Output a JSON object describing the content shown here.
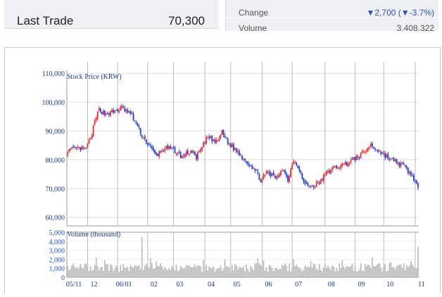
{
  "quote": {
    "last_trade_label": "Last Trade",
    "last_trade_value": "70,300",
    "change_label": "Change",
    "change_value": "▼2,700 (▼-3.7%)",
    "volume_label": "Volume",
    "volume_value": "3,408,322"
  },
  "colors": {
    "up": "#e8282d",
    "down": "#1f3fd6",
    "volume_bar": "#b8b8b8",
    "axis_text": "#1a3a8a",
    "grid": "#dddddd"
  },
  "chart_data": [
    {
      "type": "candlestick",
      "title": "Stock Price (KRW)",
      "ylim": [
        57000,
        111000
      ],
      "y_ticks": [
        "60,000",
        "70,000",
        "80,000",
        "90,000",
        "100,000",
        "110,000"
      ],
      "y_tick_values": [
        60000,
        70000,
        80000,
        90000,
        100000,
        110000
      ],
      "x_tick_labels": [
        "05/11",
        "12",
        "06/01",
        "02",
        "03",
        "04",
        "05",
        "06",
        "07",
        "08",
        "09",
        "10",
        "11"
      ],
      "month_start_index": [
        0,
        14,
        35,
        56,
        74,
        96,
        114,
        136,
        157,
        180,
        201,
        221,
        243
      ],
      "close_keypoints": [
        [
          0,
          83000
        ],
        [
          6,
          84000
        ],
        [
          12,
          83500
        ],
        [
          16,
          87000
        ],
        [
          19,
          93000
        ],
        [
          22,
          97500
        ],
        [
          26,
          96000
        ],
        [
          32,
          96500
        ],
        [
          38,
          98000
        ],
        [
          44,
          96000
        ],
        [
          52,
          88500
        ],
        [
          58,
          84000
        ],
        [
          62,
          81500
        ],
        [
          68,
          84000
        ],
        [
          74,
          83500
        ],
        [
          80,
          81000
        ],
        [
          86,
          83000
        ],
        [
          90,
          81000
        ],
        [
          94,
          84000
        ],
        [
          98,
          88000
        ],
        [
          104,
          86000
        ],
        [
          108,
          89500
        ],
        [
          112,
          86000
        ],
        [
          118,
          83000
        ],
        [
          124,
          80000
        ],
        [
          130,
          77000
        ],
        [
          135,
          73000
        ],
        [
          140,
          75500
        ],
        [
          146,
          73500
        ],
        [
          150,
          77000
        ],
        [
          154,
          73000
        ],
        [
          158,
          80000
        ],
        [
          162,
          77000
        ],
        [
          165,
          72000
        ],
        [
          170,
          70500
        ],
        [
          176,
          72000
        ],
        [
          182,
          76000
        ],
        [
          188,
          77500
        ],
        [
          194,
          78500
        ],
        [
          200,
          80000
        ],
        [
          206,
          82000
        ],
        [
          212,
          85000
        ],
        [
          216,
          83500
        ],
        [
          222,
          81500
        ],
        [
          228,
          79500
        ],
        [
          234,
          78000
        ],
        [
          238,
          76000
        ],
        [
          242,
          73500
        ],
        [
          245,
          70300
        ]
      ]
    },
    {
      "type": "bar",
      "title": "Volume (thousand)",
      "ylim": [
        0,
        5000
      ],
      "y_ticks": [
        "0",
        "1,000",
        "2,000",
        "3,000",
        "4,000",
        "5,000"
      ],
      "y_tick_values": [
        0,
        1000,
        2000,
        3000,
        4000,
        5000
      ],
      "baseline": 1100,
      "spikes": [
        [
          20,
          2200
        ],
        [
          26,
          1900
        ],
        [
          52,
          4500
        ],
        [
          58,
          2100
        ],
        [
          62,
          1800
        ],
        [
          95,
          1900
        ],
        [
          110,
          2000
        ],
        [
          133,
          2100
        ],
        [
          137,
          1900
        ],
        [
          158,
          2000
        ],
        [
          170,
          1800
        ],
        [
          192,
          1900
        ],
        [
          213,
          2200
        ],
        [
          226,
          1700
        ],
        [
          240,
          1800
        ],
        [
          245,
          3400
        ]
      ]
    }
  ]
}
